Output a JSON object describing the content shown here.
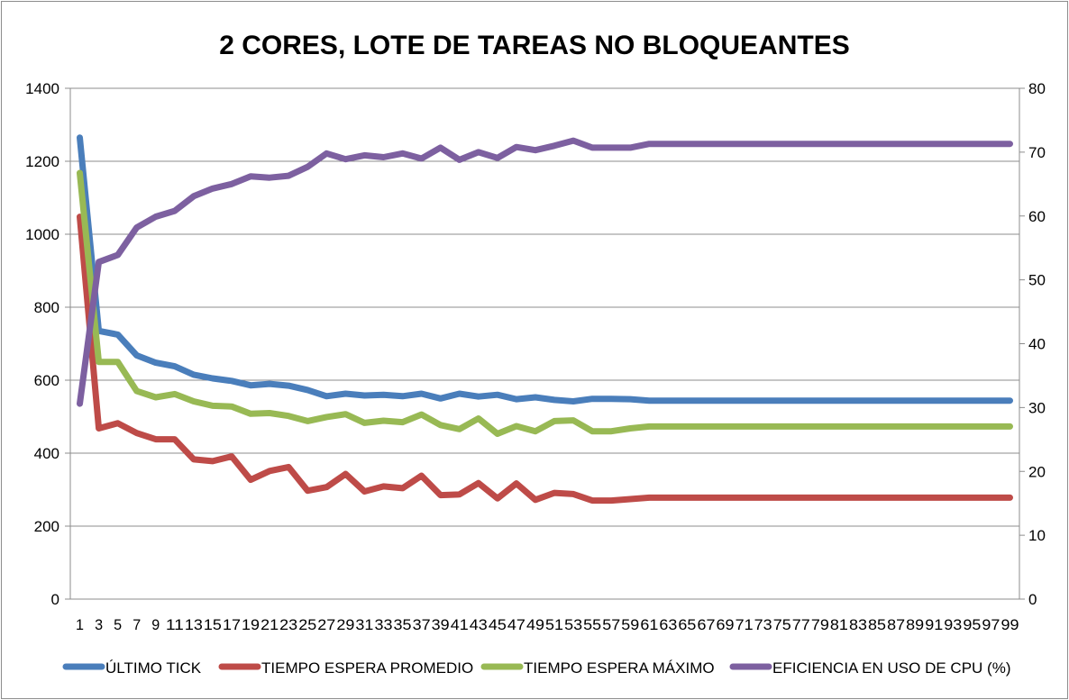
{
  "chart_data": {
    "type": "line",
    "title": "2 CORES, LOTE DE TAREAS NO BLOQUEANTES",
    "xlabel": "",
    "ylabel": "",
    "x_tick_labels": [
      "1",
      "3",
      "5",
      "7",
      "9",
      "11",
      "13",
      "15",
      "17",
      "19",
      "21",
      "23",
      "25",
      "27",
      "29",
      "31",
      "33",
      "35",
      "37",
      "39",
      "41",
      "43",
      "45",
      "47",
      "49",
      "51",
      "53",
      "55",
      "57",
      "59",
      "61",
      "63",
      "65",
      "67",
      "69",
      "71",
      "73",
      "75",
      "77",
      "79",
      "81",
      "83",
      "85",
      "87",
      "89",
      "91",
      "93",
      "95",
      "97",
      "99"
    ],
    "y_left": {
      "ylim": [
        0,
        1400
      ],
      "ticks": [
        "0",
        "200",
        "400",
        "600",
        "800",
        "1000",
        "1200",
        "1400"
      ]
    },
    "y_right": {
      "ylim": [
        0,
        80
      ],
      "ticks": [
        "0",
        "10",
        "20",
        "30",
        "40",
        "50",
        "60",
        "70",
        "80"
      ]
    },
    "grid": true,
    "legend_position": "bottom",
    "series": [
      {
        "name": "ÚLTIMO TICK",
        "axis": "left",
        "color": "#4a7ebb",
        "values": [
          1265,
          735,
          725,
          668,
          648,
          638,
          615,
          605,
          598,
          586,
          590,
          585,
          573,
          556,
          563,
          558,
          560,
          556,
          563,
          550,
          563,
          555,
          560,
          548,
          553,
          546,
          542,
          549,
          549,
          548,
          544,
          544,
          544,
          544,
          544,
          544,
          544,
          544,
          544,
          544,
          544,
          544,
          544,
          544,
          544,
          544,
          544,
          544,
          544,
          544
        ]
      },
      {
        "name": "TIEMPO ESPERA PROMEDIO",
        "axis": "left",
        "color": "#be4b48",
        "values": [
          1048,
          468,
          482,
          455,
          438,
          438,
          383,
          378,
          391,
          327,
          351,
          362,
          297,
          307,
          343,
          295,
          309,
          304,
          338,
          285,
          287,
          318,
          276,
          317,
          272,
          291,
          288,
          270,
          270,
          274,
          278,
          278,
          278,
          278,
          278,
          278,
          278,
          278,
          278,
          278,
          278,
          278,
          278,
          278,
          278,
          278,
          278,
          278,
          278,
          278
        ]
      },
      {
        "name": "TIEMPO ESPERA MÁXIMO",
        "axis": "left",
        "color": "#98b954",
        "values": [
          1168,
          650,
          650,
          570,
          553,
          562,
          542,
          530,
          528,
          508,
          510,
          502,
          488,
          499,
          507,
          483,
          489,
          485,
          506,
          477,
          466,
          495,
          453,
          474,
          460,
          488,
          490,
          460,
          460,
          468,
          473,
          473,
          473,
          473,
          473,
          473,
          473,
          473,
          473,
          473,
          473,
          473,
          473,
          473,
          473,
          473,
          473,
          473,
          473,
          473
        ]
      },
      {
        "name": "EFICIENCIA EN USO DE CPU (%)",
        "axis": "right",
        "color": "#7d60a0",
        "values": [
          30.6,
          52.8,
          53.9,
          58.2,
          59.9,
          60.8,
          63.1,
          64.3,
          65.0,
          66.2,
          66.0,
          66.3,
          67.7,
          69.8,
          68.9,
          69.5,
          69.2,
          69.8,
          69.0,
          70.7,
          68.8,
          70.0,
          69.1,
          70.8,
          70.3,
          71.0,
          71.8,
          70.7,
          70.7,
          70.7,
          71.3,
          71.3,
          71.3,
          71.3,
          71.3,
          71.3,
          71.3,
          71.3,
          71.3,
          71.3,
          71.3,
          71.3,
          71.3,
          71.3,
          71.3,
          71.3,
          71.3,
          71.3,
          71.3,
          71.3
        ]
      }
    ]
  }
}
